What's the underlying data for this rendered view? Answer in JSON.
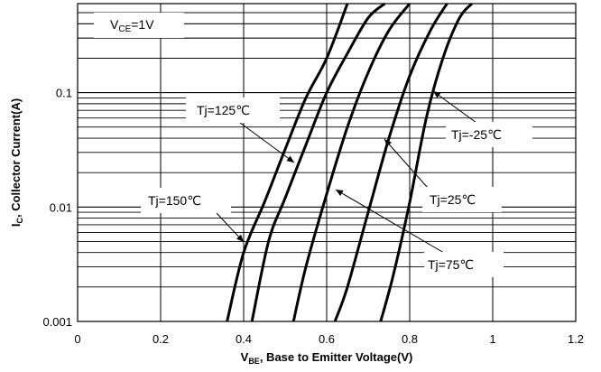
{
  "chart_data": {
    "type": "line",
    "title": "",
    "xlabel_main": "V",
    "xlabel_sub": "BE",
    "xlabel_rest": ", Base to Emitter Voltage(V)",
    "ylabel_main": "I",
    "ylabel_sub": "C",
    "ylabel_rest": ", Collector Current(A)",
    "x_scale": "linear",
    "y_scale": "log",
    "xlim": [
      0,
      1.2
    ],
    "ylim": [
      0.001,
      0.6
    ],
    "x_ticks": [
      "0",
      "0.2",
      "0.4",
      "0.6",
      "0.8",
      "1",
      "1.2"
    ],
    "y_ticks": [
      "0.001",
      "0.01",
      "0.1"
    ],
    "grid": true,
    "condition_main": "V",
    "condition_sub": "CE",
    "condition_rest": "=1V",
    "series": [
      {
        "name": "Tj=150℃",
        "label": "Tj=150℃",
        "x": [
          0.36,
          0.4,
          0.45,
          0.5,
          0.55,
          0.6,
          0.65
        ],
        "y": [
          0.001,
          0.004,
          0.011,
          0.032,
          0.09,
          0.2,
          0.6
        ]
      },
      {
        "name": "Tj=125℃",
        "label": "Tj=125℃",
        "x": [
          0.42,
          0.46,
          0.5,
          0.55,
          0.6,
          0.65,
          0.7,
          0.74
        ],
        "y": [
          0.001,
          0.005,
          0.012,
          0.035,
          0.1,
          0.22,
          0.45,
          0.6
        ]
      },
      {
        "name": "Tj=75℃",
        "label": "Tj=75℃",
        "x": [
          0.52,
          0.55,
          0.6,
          0.65,
          0.7,
          0.75,
          0.8
        ],
        "y": [
          0.001,
          0.003,
          0.013,
          0.05,
          0.15,
          0.35,
          0.6
        ]
      },
      {
        "name": "Tj=25℃",
        "label": "Tj=25℃",
        "x": [
          0.62,
          0.65,
          0.7,
          0.75,
          0.8,
          0.85,
          0.89
        ],
        "y": [
          0.001,
          0.002,
          0.009,
          0.04,
          0.14,
          0.35,
          0.6
        ]
      },
      {
        "name": "Tj=-25℃",
        "label": "Tj=-25℃",
        "x": [
          0.73,
          0.76,
          0.8,
          0.84,
          0.88,
          0.92,
          0.95
        ],
        "y": [
          0.001,
          0.0025,
          0.011,
          0.06,
          0.2,
          0.45,
          0.6
        ]
      }
    ]
  }
}
